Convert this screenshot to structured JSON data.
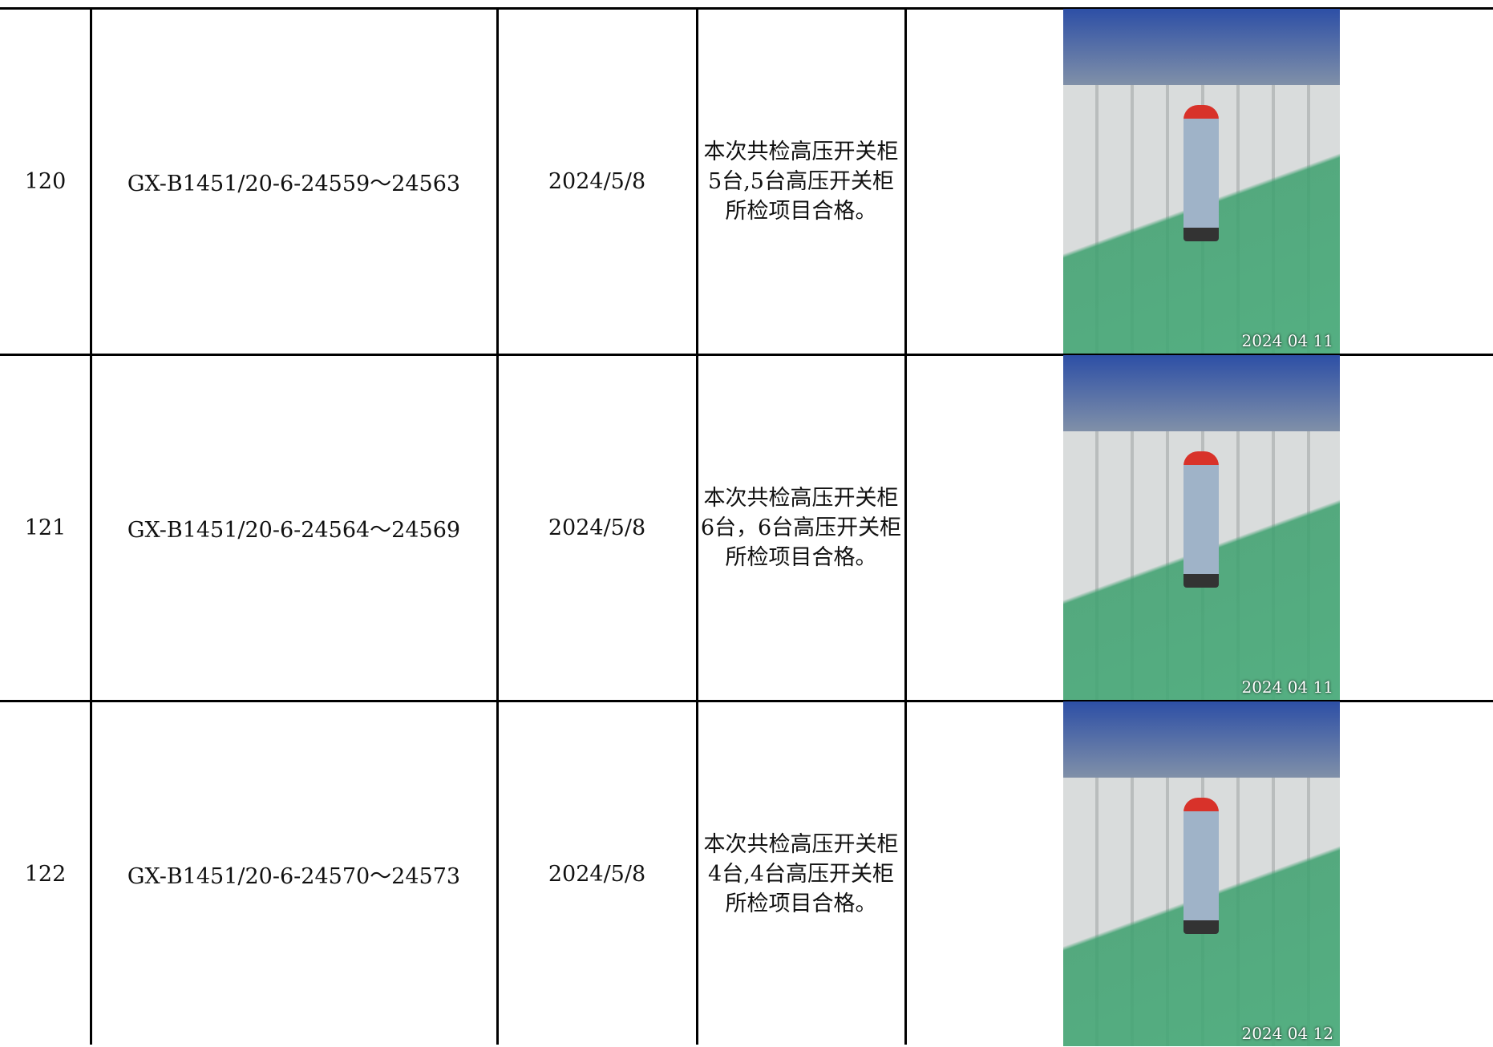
{
  "table": {
    "rows": [
      [
        "120",
        "GX-B1451/20-6-24559～24563",
        "2024/5/8",
        "本次共检高压开关柜5台,5台高压开关柜所检项目合格。",
        "2024 04 11"
      ],
      [
        "121",
        "GX-B1451/20-6-24564～24569",
        "2024/5/8",
        "本次共检高压开关柜6台，6台高压开关柜所检项目合格。",
        "2024 04 11"
      ],
      [
        "122",
        "GX-B1451/20-6-24570～24573",
        "2024/5/8",
        "本次共检高压开关柜4台,4台高压开关柜所检项目合格。",
        "2024 04 12"
      ]
    ]
  }
}
